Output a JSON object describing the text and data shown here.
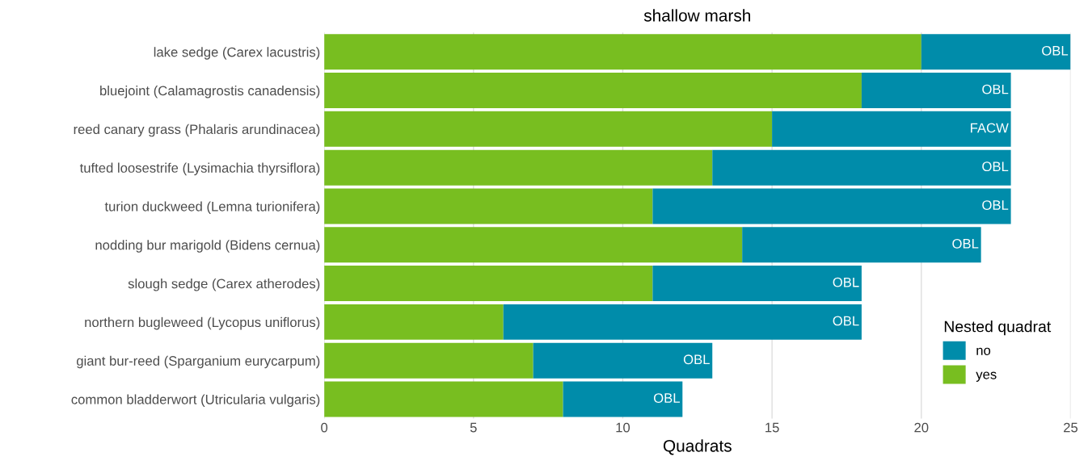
{
  "chart_data": {
    "type": "bar",
    "orientation": "horizontal",
    "stacked": true,
    "title": "shallow marsh",
    "xlabel": "Quadrats",
    "categories": [
      "lake sedge (Carex lacustris)",
      "bluejoint (Calamagrostis canadensis)",
      "reed canary grass (Phalaris arundinacea)",
      "tufted loosestrife (Lysimachia thyrsiflora)",
      "turion duckweed (Lemna turionifera)",
      "nodding bur marigold (Bidens cernua)",
      "slough sedge (Carex atherodes)",
      "northern bugleweed (Lycopus uniflorus)",
      "giant bur-reed (Sparganium eurycarpum)",
      "common bladderwort (Utricularia vulgaris)"
    ],
    "series": [
      {
        "name": "yes",
        "color": "#78be20",
        "values": [
          20,
          18,
          15,
          13,
          11,
          14,
          11,
          6,
          7,
          8
        ]
      },
      {
        "name": "no",
        "color": "#008caa",
        "values": [
          5,
          5,
          8,
          10,
          12,
          8,
          7,
          12,
          6,
          4
        ]
      }
    ],
    "annotations": [
      {
        "text": "OBL",
        "x": 25,
        "y": "lake sedge (Carex lacustris)"
      },
      {
        "text": "OBL",
        "x": 23,
        "y": "bluejoint (Calamagrostis canadensis)"
      },
      {
        "text": "FACW",
        "x": 23,
        "y": "reed canary grass (Phalaris arundinacea)"
      },
      {
        "text": "OBL",
        "x": 23,
        "y": "tufted loosestrife (Lysimachia thyrsiflora)"
      },
      {
        "text": "OBL",
        "x": 23,
        "y": "turion duckweed (Lemna turionifera)"
      },
      {
        "text": "OBL",
        "x": 22,
        "y": "nodding bur marigold (Bidens cernua)"
      },
      {
        "text": "OBL",
        "x": 18,
        "y": "slough sedge (Carex atherodes)"
      },
      {
        "text": "OBL",
        "x": 18,
        "y": "northern bugleweed (Lycopus uniflorus)"
      },
      {
        "text": "OBL",
        "x": 13,
        "y": "giant bur-reed (Sparganium eurycarpum)"
      },
      {
        "text": "OBL",
        "x": 12,
        "y": "common bladderwort (Utricularia vulgaris)"
      }
    ],
    "xlim": [
      0,
      25
    ],
    "xticks": [
      0,
      5,
      10,
      15,
      20,
      25
    ],
    "grid": "x",
    "legend": "bottom right",
    "legend_title": "Nested quadrat"
  }
}
